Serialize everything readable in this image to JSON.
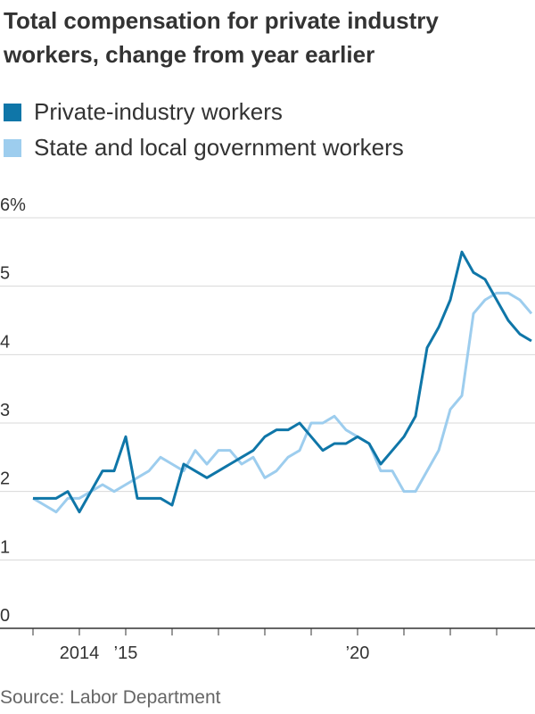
{
  "chart_data": {
    "type": "line",
    "title": "Total compensation for private industry workers, change from year earlier",
    "source": "Source: Labor Department",
    "categories": [
      null,
      null,
      null,
      null,
      "2014",
      null,
      null,
      null,
      "’15",
      null,
      null,
      null,
      null,
      null,
      null,
      null,
      null,
      null,
      null,
      null,
      null,
      null,
      null,
      null,
      null,
      null,
      null,
      null,
      "’20",
      null,
      null,
      null,
      null,
      null,
      null,
      null,
      null,
      null,
      null,
      null,
      null,
      null,
      null,
      null
    ],
    "series": [
      {
        "name": "Private-industry workers",
        "color": "#0f76a8",
        "values": [
          1.9,
          1.9,
          1.9,
          2.0,
          1.7,
          2.0,
          2.3,
          2.3,
          2.8,
          1.9,
          1.9,
          1.9,
          1.8,
          2.4,
          2.3,
          2.2,
          2.3,
          2.4,
          2.5,
          2.6,
          2.8,
          2.9,
          2.9,
          3.0,
          2.8,
          2.6,
          2.7,
          2.7,
          2.8,
          2.7,
          2.4,
          2.6,
          2.8,
          3.1,
          4.1,
          4.4,
          4.8,
          5.5,
          5.2,
          5.1,
          4.8,
          4.5,
          4.3,
          4.2
        ]
      },
      {
        "name": "State and local government workers",
        "color": "#9dcdee",
        "values": [
          1.9,
          1.8,
          1.7,
          1.9,
          1.9,
          2.0,
          2.1,
          2.0,
          2.1,
          2.2,
          2.3,
          2.5,
          2.4,
          2.3,
          2.6,
          2.4,
          2.6,
          2.6,
          2.4,
          2.5,
          2.2,
          2.3,
          2.5,
          2.6,
          3.0,
          3.0,
          3.1,
          2.9,
          2.8,
          2.7,
          2.3,
          2.3,
          2.0,
          2.0,
          2.3,
          2.6,
          3.2,
          3.4,
          4.6,
          4.8,
          4.9,
          4.9,
          4.8,
          4.6
        ]
      }
    ],
    "ylim": [
      0,
      6
    ],
    "yticks": [
      0,
      1,
      2,
      3,
      4,
      5,
      {
        "value": 6,
        "label": "6%"
      }
    ],
    "grid": true
  }
}
